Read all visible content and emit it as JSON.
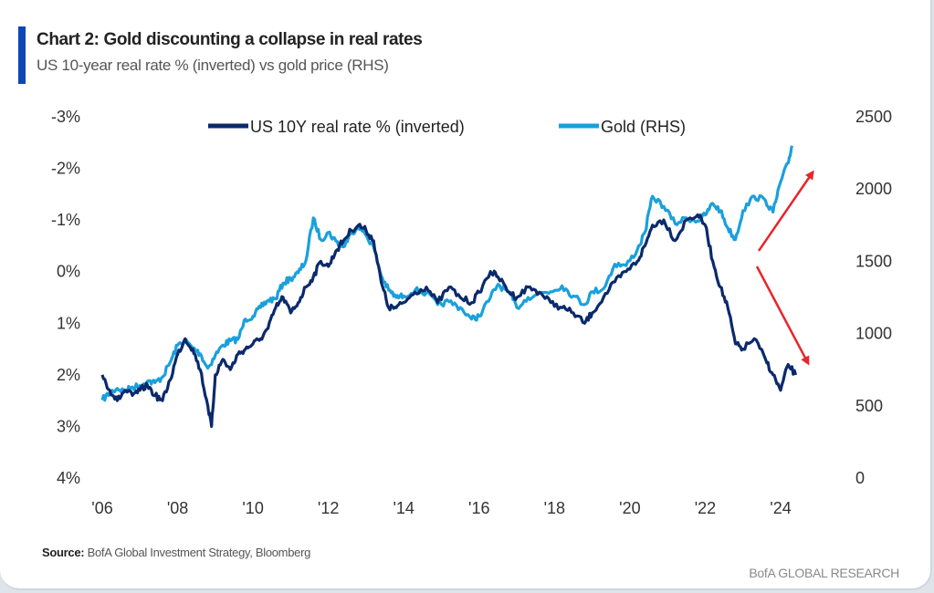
{
  "header": {
    "title": "Chart 2: Gold discounting a collapse in real rates",
    "subtitle": "US 10-year real rate % (inverted) vs gold price (RHS)"
  },
  "footer": {
    "source_label": "Source:",
    "source_text": "BofA Global Investment Strategy, Bloomberg",
    "brand": "BofA GLOBAL RESEARCH"
  },
  "colors": {
    "real_rate": "#0b2a6b",
    "gold": "#1aa0dc",
    "arrow": "#e8252b",
    "accent": "#0d47b5"
  },
  "chart_data": {
    "type": "line",
    "title": "Chart 2: Gold discounting a collapse in real rates",
    "subtitle": "US 10-year real rate % (inverted) vs gold price (RHS)",
    "xlabel": "",
    "ylabel": "US 10Y real rate % (inverted)",
    "y2label": "Gold (RHS)",
    "x_ticks": [
      "'06",
      "'08",
      "'10",
      "'12",
      "'14",
      "'16",
      "'18",
      "'20",
      "'22",
      "'24"
    ],
    "x_range": [
      2006,
      2024.9
    ],
    "y_left": {
      "ticks": [
        "-3%",
        "-2%",
        "-1%",
        "0%",
        "1%",
        "2%",
        "3%",
        "4%"
      ],
      "range": [
        -3,
        4
      ],
      "inverted": true
    },
    "y_right": {
      "ticks": [
        "2500",
        "2000",
        "1500",
        "1000",
        "500",
        "0"
      ],
      "range": [
        0,
        2500
      ]
    },
    "legend": {
      "placement": "top-center",
      "entries": [
        "US 10Y real rate % (inverted)",
        "Gold (RHS)"
      ]
    },
    "grid": false,
    "series": [
      {
        "name": "US 10Y real rate % (inverted)",
        "axis": "left",
        "x": [
          2006.0,
          2006.2,
          2006.4,
          2006.6,
          2006.8,
          2007.0,
          2007.2,
          2007.4,
          2007.6,
          2007.8,
          2008.0,
          2008.2,
          2008.4,
          2008.6,
          2008.8,
          2008.9,
          2009.0,
          2009.2,
          2009.4,
          2009.6,
          2009.8,
          2010.0,
          2010.2,
          2010.4,
          2010.6,
          2010.8,
          2011.0,
          2011.2,
          2011.4,
          2011.6,
          2011.8,
          2012.0,
          2012.2,
          2012.4,
          2012.6,
          2012.8,
          2013.0,
          2013.2,
          2013.4,
          2013.6,
          2013.8,
          2014.0,
          2014.3,
          2014.6,
          2014.9,
          2015.2,
          2015.5,
          2015.8,
          2016.0,
          2016.3,
          2016.5,
          2016.8,
          2017.0,
          2017.3,
          2017.6,
          2017.9,
          2018.2,
          2018.5,
          2018.8,
          2019.0,
          2019.3,
          2019.6,
          2019.9,
          2020.2,
          2020.4,
          2020.6,
          2020.9,
          2021.2,
          2021.5,
          2021.8,
          2022.0,
          2022.2,
          2022.4,
          2022.6,
          2022.8,
          2023.0,
          2023.3,
          2023.6,
          2023.8,
          2024.0,
          2024.2,
          2024.4
        ],
        "y": [
          2.0,
          2.3,
          2.5,
          2.3,
          2.4,
          2.3,
          2.2,
          2.4,
          2.5,
          2.1,
          1.6,
          1.3,
          1.5,
          1.9,
          2.6,
          3.0,
          2.0,
          1.7,
          1.9,
          1.6,
          1.5,
          1.4,
          1.3,
          1.1,
          0.7,
          0.5,
          0.8,
          0.6,
          0.3,
          0.1,
          -0.2,
          -0.1,
          -0.4,
          -0.6,
          -0.8,
          -0.9,
          -0.8,
          -0.6,
          0.2,
          0.7,
          0.7,
          0.6,
          0.4,
          0.3,
          0.6,
          0.3,
          0.5,
          0.6,
          0.4,
          0.0,
          0.1,
          0.4,
          0.5,
          0.3,
          0.4,
          0.6,
          0.7,
          0.8,
          1.0,
          0.8,
          0.5,
          0.2,
          0.0,
          -0.2,
          -0.5,
          -0.9,
          -1.0,
          -0.6,
          -1.0,
          -1.1,
          -0.9,
          -0.2,
          0.3,
          0.7,
          1.4,
          1.5,
          1.3,
          1.7,
          2.0,
          2.3,
          1.8,
          2.0
        ]
      },
      {
        "name": "Gold (RHS)",
        "axis": "right",
        "x": [
          2006.0,
          2006.2,
          2006.4,
          2006.6,
          2006.8,
          2007.0,
          2007.2,
          2007.4,
          2007.6,
          2007.8,
          2008.0,
          2008.2,
          2008.4,
          2008.6,
          2008.8,
          2009.0,
          2009.2,
          2009.4,
          2009.6,
          2009.8,
          2010.0,
          2010.2,
          2010.4,
          2010.6,
          2010.8,
          2011.0,
          2011.2,
          2011.4,
          2011.6,
          2011.8,
          2012.0,
          2012.2,
          2012.4,
          2012.6,
          2012.8,
          2013.0,
          2013.2,
          2013.4,
          2013.6,
          2013.8,
          2014.0,
          2014.3,
          2014.6,
          2014.9,
          2015.2,
          2015.5,
          2015.8,
          2016.0,
          2016.3,
          2016.5,
          2016.8,
          2017.0,
          2017.3,
          2017.6,
          2017.9,
          2018.2,
          2018.5,
          2018.8,
          2019.0,
          2019.3,
          2019.6,
          2019.9,
          2020.2,
          2020.4,
          2020.6,
          2020.9,
          2021.2,
          2021.5,
          2021.8,
          2022.0,
          2022.2,
          2022.4,
          2022.6,
          2022.8,
          2023.0,
          2023.3,
          2023.6,
          2023.8,
          2024.0,
          2024.2,
          2024.3
        ],
        "y": [
          540,
          590,
          620,
          600,
          630,
          640,
          670,
          660,
          700,
          800,
          920,
          950,
          900,
          860,
          760,
          850,
          920,
          950,
          960,
          1100,
          1120,
          1180,
          1230,
          1240,
          1350,
          1380,
          1420,
          1500,
          1800,
          1650,
          1700,
          1640,
          1600,
          1690,
          1750,
          1680,
          1600,
          1400,
          1300,
          1250,
          1260,
          1300,
          1280,
          1200,
          1220,
          1180,
          1100,
          1120,
          1250,
          1340,
          1280,
          1180,
          1250,
          1280,
          1290,
          1330,
          1260,
          1200,
          1290,
          1310,
          1480,
          1470,
          1580,
          1700,
          1950,
          1880,
          1760,
          1800,
          1780,
          1820,
          1900,
          1850,
          1730,
          1650,
          1850,
          1950,
          1920,
          1840,
          2050,
          2180,
          2300
        ]
      }
    ],
    "annotations": [
      {
        "type": "arrow",
        "direction": "up",
        "meaning": "gold rising"
      },
      {
        "type": "arrow",
        "direction": "down",
        "meaning": "real rates (inverted) falling"
      }
    ]
  }
}
